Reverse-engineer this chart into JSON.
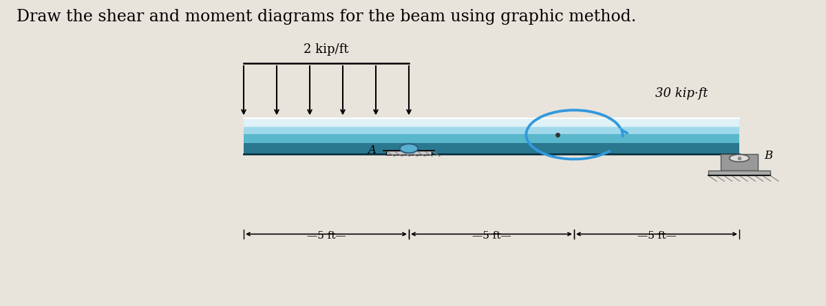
{
  "title": "Draw the shear and moment diagrams for the beam using graphic method.",
  "title_fontsize": 17,
  "bg_color": "#e8e4dc",
  "beam_color_top_highlight": "#e0f4f8",
  "beam_color_light": "#a8d8e8",
  "beam_color_mid": "#5ab8cc",
  "beam_color_dark": "#2a7890",
  "beam_color_edge_dark": "#1a5060",
  "dist_load_label": "2 kip/ft",
  "moment_label": "30 kip·ft",
  "label_A": "A",
  "label_B": "B",
  "dim_labels": [
    "5 ft",
    "5 ft",
    "5 ft"
  ],
  "n_dist_arrows": 6,
  "arc_color": "#3399dd",
  "support_A_color": "#5ab0d0",
  "support_gray": "#aaaaaa",
  "support_dark": "#888888"
}
